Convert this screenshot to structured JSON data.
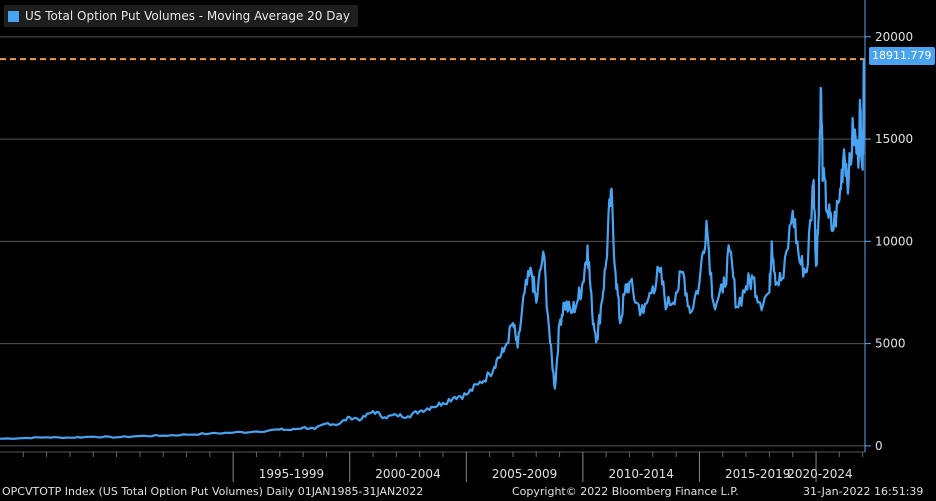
{
  "legend": {
    "label": "US Total Option Put Volumes - Moving Average 20 Day",
    "color": "#4aa3f0"
  },
  "last_value_label": "18911.779",
  "footer": {
    "index": "OPCVTOTP Index (US Total Option Put Volumes)  Daily 01JAN1985-31JAN2022",
    "copyright": "Copyright© 2022 Bloomberg Finance L.P.",
    "timestamp": "31-Jan-2022 16:51:39"
  },
  "colors": {
    "series": "#4aa3f0",
    "reference": "#f0a040",
    "grid": "#555555",
    "axis": "#5aa8f0",
    "background": "#000000"
  },
  "chart_data": {
    "type": "line",
    "title": "US Total Option Put Volumes - Moving Average 20 Day",
    "xlabel": "",
    "ylabel": "",
    "xlim": [
      1985,
      2022.1
    ],
    "ylim": [
      -300,
      21800
    ],
    "y_ticks": [
      0,
      5000,
      10000,
      15000,
      20000
    ],
    "x_tick_labels": [
      "1995-1999",
      "2000-2004",
      "2005-2009",
      "2010-2014",
      "2015-2019",
      "2020-2024"
    ],
    "x_tick_centers": [
      1997.5,
      2002.5,
      2007.5,
      2012.5,
      2017.5,
      2022.5
    ],
    "x_tick_bounds": [
      1995,
      2000,
      2005,
      2010,
      2015,
      2020
    ],
    "reference_line": {
      "value": 18911.779,
      "style": "dashed"
    },
    "grid": true,
    "series": [
      {
        "name": "US Total Option Put Volumes - Moving Average 20 Day",
        "x": [
          1985.0,
          1986.0,
          1987.0,
          1988.0,
          1989.0,
          1990.0,
          1991.0,
          1992.0,
          1993.0,
          1994.0,
          1995.0,
          1996.0,
          1997.0,
          1997.5,
          1998.0,
          1998.5,
          1999.0,
          1999.5,
          2000.0,
          2000.5,
          2001.0,
          2001.5,
          2002.0,
          2002.5,
          2003.0,
          2003.5,
          2004.0,
          2004.5,
          2005.0,
          2005.5,
          2006.0,
          2006.3,
          2006.6,
          2007.0,
          2007.2,
          2007.5,
          2007.8,
          2008.0,
          2008.3,
          2008.6,
          2008.8,
          2009.0,
          2009.2,
          2009.5,
          2009.8,
          2010.0,
          2010.2,
          2010.4,
          2010.6,
          2010.8,
          2011.0,
          2011.2,
          2011.4,
          2011.6,
          2011.8,
          2012.0,
          2012.3,
          2012.6,
          2013.0,
          2013.3,
          2013.6,
          2014.0,
          2014.3,
          2014.6,
          2015.0,
          2015.3,
          2015.6,
          2016.0,
          2016.3,
          2016.6,
          2017.0,
          2017.3,
          2017.6,
          2018.0,
          2018.1,
          2018.3,
          2018.6,
          2019.0,
          2019.3,
          2019.6,
          2019.9,
          2020.0,
          2020.1,
          2020.2,
          2020.3,
          2020.5,
          2020.7,
          2021.0,
          2021.2,
          2021.4,
          2021.6,
          2021.8,
          2021.9,
          2022.0,
          2022.05
        ],
        "values": [
          350,
          380,
          420,
          400,
          450,
          420,
          480,
          500,
          550,
          600,
          650,
          700,
          800,
          780,
          900,
          820,
          1100,
          1050,
          1400,
          1300,
          1700,
          1400,
          1500,
          1450,
          1700,
          1900,
          2100,
          2400,
          2500,
          3000,
          3500,
          4200,
          4600,
          6000,
          4800,
          7500,
          8500,
          7000,
          9500,
          5000,
          2800,
          6000,
          7000,
          6500,
          7200,
          8000,
          9800,
          6500,
          5200,
          7000,
          9000,
          12500,
          8500,
          6000,
          7500,
          8000,
          7000,
          6500,
          7800,
          8500,
          6800,
          7500,
          8500,
          6500,
          8000,
          11000,
          7000,
          7500,
          9500,
          6800,
          7800,
          8200,
          7000,
          7500,
          10000,
          8000,
          8200,
          11500,
          9000,
          8500,
          13000,
          8800,
          11000,
          17500,
          13000,
          11500,
          10500,
          12000,
          14500,
          13000,
          15500,
          14000,
          16500,
          13500,
          18911.779
        ]
      }
    ]
  }
}
